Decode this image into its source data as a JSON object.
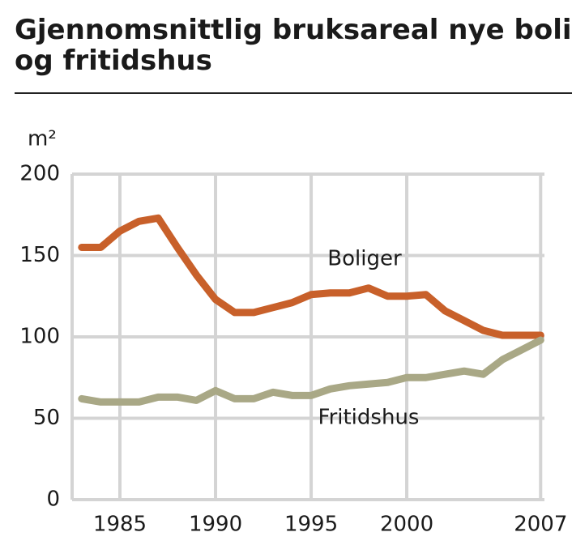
{
  "chart_data": {
    "type": "line",
    "title": "Gjennomsnittlig bruksareal nye boliger og fritidshus",
    "ylabel": "m²",
    "x": [
      1983,
      1984,
      1985,
      1986,
      1987,
      1988,
      1989,
      1990,
      1991,
      1992,
      1993,
      1994,
      1995,
      1996,
      1997,
      1998,
      1999,
      2000,
      2001,
      2002,
      2003,
      2004,
      2005,
      2006,
      2007
    ],
    "series": [
      {
        "name": "Boliger",
        "color": "#c8602a",
        "values": [
          155,
          155,
          165,
          171,
          173,
          155,
          138,
          123,
          115,
          115,
          118,
          121,
          126,
          127,
          127,
          130,
          125,
          125,
          126,
          116,
          110,
          104,
          101,
          101,
          101
        ]
      },
      {
        "name": "Fritidshus",
        "color": "#a9a886",
        "values": [
          62,
          60,
          60,
          60,
          63,
          63,
          61,
          67,
          62,
          62,
          66,
          64,
          64,
          68,
          70,
          71,
          72,
          75,
          75,
          77,
          79,
          77,
          86,
          92,
          98
        ]
      }
    ],
    "xlim": [
      1982.5,
      2007.2
    ],
    "xticks": [
      1985,
      1990,
      1995,
      2000,
      2007
    ],
    "ylim": [
      0,
      200
    ],
    "yticks": [
      0,
      50,
      100,
      150,
      200
    ],
    "grid": true
  }
}
